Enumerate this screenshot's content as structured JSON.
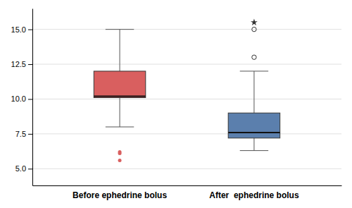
{
  "chart_data": {
    "type": "box",
    "categories": [
      "Before ephedrine bolus",
      "After  ephedrine bolus"
    ],
    "boxes": [
      {
        "whisker_low": 8.0,
        "q1": 10.1,
        "median": 10.2,
        "q3": 12.0,
        "whisker_high": 15.0,
        "color": "#d95f5f",
        "fliers": [
          {
            "values": [
              6.2,
              6.1,
              5.6
            ],
            "marker": "circle",
            "color": "#d95f5f"
          }
        ]
      },
      {
        "whisker_low": 6.3,
        "q1": 7.2,
        "median": 7.6,
        "q3": 9.0,
        "whisker_high": 12.0,
        "color": "#5b7fad",
        "fliers": [
          {
            "values": [
              13.0,
              15.0
            ],
            "marker": "circle-open"
          },
          {
            "values": [
              15.5
            ],
            "marker": "star"
          }
        ]
      }
    ],
    "ylim": [
      3.8,
      16.5
    ],
    "yticks": [
      {
        "value": 5.0,
        "label": "5.0"
      },
      {
        "value": 7.5,
        "label": "7.5"
      },
      {
        "value": 10.0,
        "label": "10.0"
      },
      {
        "value": 12.5,
        "label": "12.5"
      },
      {
        "value": 15.0,
        "label": "15.0"
      }
    ],
    "grid": true
  }
}
